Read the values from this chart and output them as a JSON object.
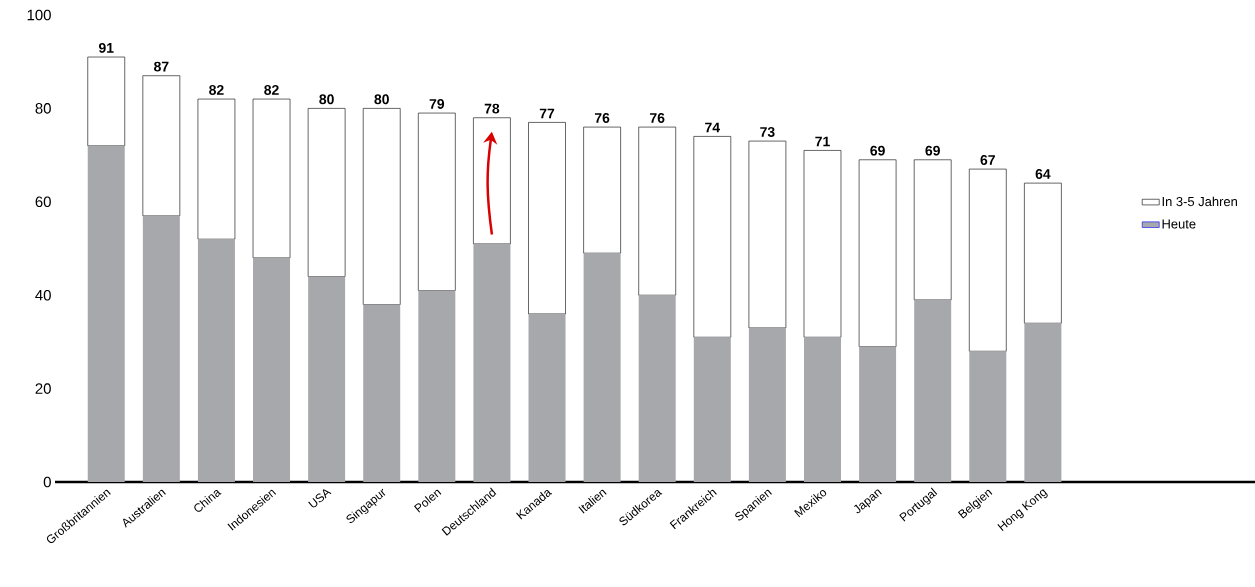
{
  "chart_data": {
    "type": "bar",
    "stacked": true,
    "categories": [
      "Großbritannien",
      "Australien",
      "China",
      "Indonesien",
      "USA",
      "Singapur",
      "Polen",
      "Deutschland",
      "Kanada",
      "Italien",
      "Südkorea",
      "Frankreich",
      "Spanien",
      "Mexiko",
      "Japan",
      "Portugal",
      "Belgien",
      "Hong Kong"
    ],
    "series": [
      {
        "name": "Heute",
        "color": "#a7a8ac",
        "values": [
          72,
          57,
          52,
          48,
          44,
          38,
          41,
          51,
          36,
          49,
          40,
          31,
          33,
          31,
          29,
          39,
          28,
          34
        ]
      },
      {
        "name": "In 3-5 Jahren",
        "color": "#ffffff",
        "values": [
          19,
          30,
          30,
          34,
          36,
          42,
          38,
          27,
          41,
          27,
          36,
          43,
          40,
          40,
          40,
          30,
          39,
          30
        ]
      }
    ],
    "totals": [
      "91",
      "87",
      "82",
      "82",
      "80",
      "80",
      "79",
      "78",
      "77",
      "76",
      "76",
      "74",
      "73",
      "71",
      "69",
      "69",
      "67",
      "64"
    ],
    "ylim": [
      0,
      100
    ],
    "yticks": [
      0,
      20,
      40,
      60,
      80,
      100
    ],
    "legend": "right"
  }
}
